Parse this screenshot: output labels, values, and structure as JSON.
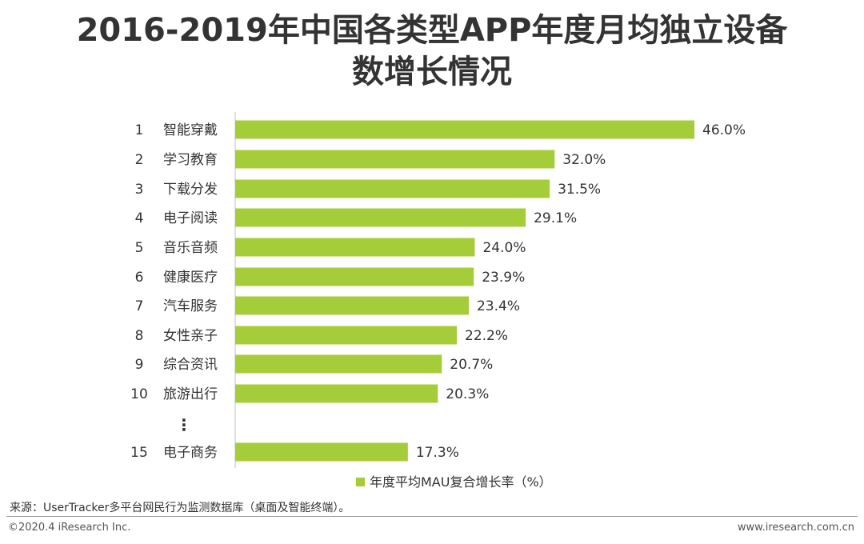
{
  "title_line1": "2016-2019年中国各类型APP年度月均独立设备",
  "title_line2": "数增长情况",
  "source": "来源：UserTracker多平台网民行为监测数据库（桌面及智能终端）。",
  "footer_left": "©2020.4 iResearch Inc.",
  "footer_right": "www.iresearch.com.cn",
  "colors": {
    "bar": "#a5cd39",
    "axis": "#bfbfbf"
  },
  "chart_data": {
    "type": "bar",
    "orientation": "horizontal",
    "ranks": [
      "1",
      "2",
      "3",
      "4",
      "5",
      "6",
      "7",
      "8",
      "9",
      "10",
      "15"
    ],
    "categories": [
      "智能穿戴",
      "学习教育",
      "下载分发",
      "电子阅读",
      "音乐音频",
      "健康医疗",
      "汽车服务",
      "女性亲子",
      "综合资讯",
      "旅游出行",
      "电子商务"
    ],
    "values": [
      46.0,
      32.0,
      31.5,
      29.1,
      24.0,
      23.9,
      23.4,
      22.2,
      20.7,
      20.3,
      17.3
    ],
    "value_labels": [
      "46.0%",
      "32.0%",
      "31.5%",
      "29.1%",
      "24.0%",
      "23.9%",
      "23.4%",
      "22.2%",
      "20.7%",
      "20.3%",
      "17.3%"
    ],
    "gap_marker": "⋮",
    "series": [
      {
        "name": "年度平均MAU复合增长率（%）",
        "values": [
          46.0,
          32.0,
          31.5,
          29.1,
          24.0,
          23.9,
          23.4,
          22.2,
          20.7,
          20.3,
          17.3
        ]
      }
    ],
    "legend": "年度平均MAU复合增长率（%）",
    "legend_position": "bottom",
    "xlim": [
      0,
      46.0
    ],
    "grid": false
  }
}
